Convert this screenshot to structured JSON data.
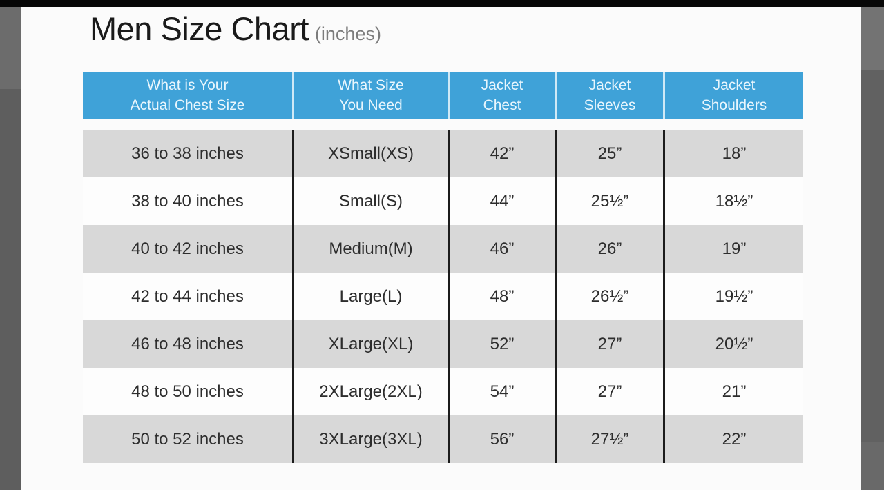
{
  "colors": {
    "top_bar": "#070707",
    "content_bg": "#fbfbfb",
    "header_bg": "#3fa2d8",
    "header_text": "#e9f6fd",
    "header_divider": "#cfe9f6",
    "row_alt_bg": "#d8d8d8",
    "row_bg": "#fdfdfd",
    "divider": "#1c1c1c",
    "title_text": "#1a1a1a",
    "subtitle_text": "#7c7c7c",
    "cell_text": "#2d2d2d"
  },
  "title": {
    "main": "Men Size Chart",
    "unit": "(inches)"
  },
  "table": {
    "columns": [
      {
        "line1": "What is Your",
        "line2": "Actual Chest Size"
      },
      {
        "line1": "What Size",
        "line2": "You Need"
      },
      {
        "line1": "Jacket",
        "line2": "Chest"
      },
      {
        "line1": "Jacket",
        "line2": "Sleeves"
      },
      {
        "line1": "Jacket",
        "line2": "Shoulders"
      }
    ],
    "rows": [
      {
        "chest_range": "36 to 38 inches",
        "size": "XSmall(XS)",
        "jacket_chest": "42”",
        "jacket_sleeves": "25”",
        "jacket_shoulders": "18”"
      },
      {
        "chest_range": "38 to 40 inches",
        "size": "Small(S)",
        "jacket_chest": "44”",
        "jacket_sleeves": "25½”",
        "jacket_shoulders": "18½”"
      },
      {
        "chest_range": "40 to 42 inches",
        "size": "Medium(M)",
        "jacket_chest": "46”",
        "jacket_sleeves": "26”",
        "jacket_shoulders": "19”"
      },
      {
        "chest_range": "42 to 44 inches",
        "size": "Large(L)",
        "jacket_chest": "48”",
        "jacket_sleeves": "26½”",
        "jacket_shoulders": "19½”"
      },
      {
        "chest_range": "46 to 48 inches",
        "size": "XLarge(XL)",
        "jacket_chest": "52”",
        "jacket_sleeves": "27”",
        "jacket_shoulders": "20½”"
      },
      {
        "chest_range": "48 to 50 inches",
        "size": "2XLarge(2XL)",
        "jacket_chest": "54”",
        "jacket_sleeves": "27”",
        "jacket_shoulders": "21”"
      },
      {
        "chest_range": "50 to 52 inches",
        "size": "3XLarge(3XL)",
        "jacket_chest": "56”",
        "jacket_sleeves": "27½”",
        "jacket_shoulders": "22”"
      }
    ]
  },
  "chart_data": {
    "type": "table",
    "title": "Men Size Chart (inches)",
    "columns": [
      "What is Your Actual Chest Size",
      "What Size You Need",
      "Jacket Chest",
      "Jacket Sleeves",
      "Jacket Shoulders"
    ],
    "rows": [
      [
        "36 to 38 inches",
        "XSmall(XS)",
        "42\"",
        "25\"",
        "18\""
      ],
      [
        "38 to 40 inches",
        "Small(S)",
        "44\"",
        "25.5\"",
        "18.5\""
      ],
      [
        "40 to 42 inches",
        "Medium(M)",
        "46\"",
        "26\"",
        "19\""
      ],
      [
        "42 to 44 inches",
        "Large(L)",
        "48\"",
        "26.5\"",
        "19.5\""
      ],
      [
        "46 to 48 inches",
        "XLarge(XL)",
        "52\"",
        "27\"",
        "20.5\""
      ],
      [
        "48 to 50 inches",
        "2XLarge(2XL)",
        "54\"",
        "27\"",
        "21\""
      ],
      [
        "50 to 52 inches",
        "3XLarge(3XL)",
        "56\"",
        "27.5\"",
        "22\""
      ]
    ],
    "units": "inches",
    "layout": "header row blue, alternating gray/white body rows, black column dividers"
  }
}
